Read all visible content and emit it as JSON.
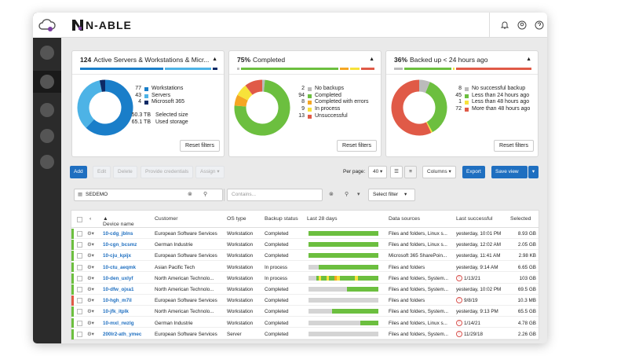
{
  "brand": {
    "name": "N-ABLE"
  },
  "topbar": {
    "icons": [
      "bell-icon",
      "user-icon",
      "help-icon",
      "apps-grid-icon"
    ]
  },
  "cards": [
    {
      "count": "124",
      "title": "Active Servers & Workstations & Micr...",
      "legend": [
        {
          "n": "77",
          "label": "Workstations",
          "color": "#1a7ec9",
          "value": 77
        },
        {
          "n": "43",
          "label": "Servers",
          "color": "#4db3e6",
          "value": 43
        },
        {
          "n": "4",
          "label": "Microsoft 365",
          "color": "#0d2a66",
          "value": 4
        }
      ],
      "stats": [
        {
          "n": "50.3 TB",
          "label": "Selected size"
        },
        {
          "n": "65.1 TB",
          "label": "Used storage"
        }
      ],
      "reset": "Reset filters"
    },
    {
      "count": "75%",
      "title": "Completed",
      "legend": [
        {
          "n": "2",
          "label": "No backups",
          "color": "#bbbbbb",
          "value": 2
        },
        {
          "n": "94",
          "label": "Completed",
          "color": "#6cbf3f",
          "value": 94
        },
        {
          "n": "8",
          "label": "Completed with errors",
          "color": "#f5a623",
          "value": 8
        },
        {
          "n": "9",
          "label": "In process",
          "color": "#f7e23a",
          "value": 9
        },
        {
          "n": "13",
          "label": "Unsuccessful",
          "color": "#e05a47",
          "value": 13
        }
      ],
      "reset": "Reset filters"
    },
    {
      "count": "36%",
      "title": "Backed up < 24 hours ago",
      "legend": [
        {
          "n": "8",
          "label": "No successful backup",
          "color": "#bbbbbb",
          "value": 8
        },
        {
          "n": "45",
          "label": "Less than 24 hours ago",
          "color": "#6cbf3f",
          "value": 45
        },
        {
          "n": "1",
          "label": "Less than 48 hours ago",
          "color": "#f7e23a",
          "value": 1
        },
        {
          "n": "72",
          "label": "More than 48 hours ago",
          "color": "#e05a47",
          "value": 72
        }
      ],
      "reset": "Reset filters"
    }
  ],
  "toolbar": {
    "add": "Add",
    "edit": "Edit",
    "delete": "Delete",
    "provide_credentials": "Provide credentials",
    "assign": "Assign",
    "per_page_label": "Per page:",
    "per_page_value": "40",
    "columns": "Columns",
    "export": "Export",
    "save_view": "Save view"
  },
  "filters": {
    "search_value": "SEDEMO",
    "contains_placeholder": "Contains...",
    "select_filter": "Select filter"
  },
  "grid": {
    "columns": [
      "Device name",
      "Customer",
      "OS type",
      "Backup status",
      "Last 28 days",
      "Data sources",
      "Last successful",
      "Selected"
    ],
    "rows": [
      {
        "device": "10-cdg_jblns",
        "customer": "European Software Services",
        "os": "Workstation",
        "status": "Completed",
        "sources": "Files and folders, Linux s...",
        "last": "yesterday, 10:01 PM",
        "size": "8.93 GB",
        "edge": "#6cbf3f",
        "warn": false,
        "hist": "ggggggggggggggggggggggggggg"
      },
      {
        "device": "10-cgn_bcsmz",
        "customer": "German Industrie",
        "os": "Workstation",
        "status": "Completed",
        "sources": "Files and folders, Linux s...",
        "last": "yesterday, 12:02 AM",
        "size": "2.05 GB",
        "edge": "#6cbf3f",
        "warn": false,
        "hist": "ggggggggggggggggggggggggggg"
      },
      {
        "device": "10-cju_kpijx",
        "customer": "European Software Services",
        "os": "Workstation",
        "status": "Completed",
        "sources": "Microsoft 365 SharePoin...",
        "last": "yesterday, 11:41 AM",
        "size": "2.98 KB",
        "edge": "#6cbf3f",
        "warn": false,
        "hist": "ggggggggggggggggggggggggggg"
      },
      {
        "device": "10-ctu_aeqmk",
        "customer": "Asian Pacific Tech",
        "os": "Workstation",
        "status": "In process",
        "sources": "Files and folders",
        "last": "yesterday, 9:14 AM",
        "size": "6.65 GB",
        "edge": "#6cbf3f",
        "warn": false,
        "hist": "xxxxggggggggggggggggggggggg"
      },
      {
        "device": "10-den_uxlyf",
        "customer": "North American Technolo...",
        "os": "Workstation",
        "status": "In process",
        "sources": "Files and folders, System...",
        "last": "1/13/21",
        "size": "103 GB",
        "edge": "#6cbf3f",
        "warn": true,
        "hist": "xxxgyggyggoyggggggygggggggg"
      },
      {
        "device": "10-dfw_ojxa1",
        "customer": "North American Technolo...",
        "os": "Workstation",
        "status": "Completed",
        "sources": "Files and folders, System...",
        "last": "yesterday, 10:02 PM",
        "size": "69.5 GB",
        "edge": "#6cbf3f",
        "warn": false,
        "hist": "xxxxxxxxxxxxxxxgggggggggggg"
      },
      {
        "device": "10-hgh_m7il",
        "customer": "European Software Services",
        "os": "Workstation",
        "status": "Completed",
        "sources": "Files and folders",
        "last": "9/8/19",
        "size": "10.3 MB",
        "edge": "#e05a47",
        "warn": true,
        "hist": "xxxxxxxxxxxxxxxxxxxxxxxxxxx"
      },
      {
        "device": "10-jfk_itplk",
        "customer": "North American Technolo...",
        "os": "Workstation",
        "status": "Completed",
        "sources": "Files and folders, System...",
        "last": "yesterday, 9:13 PM",
        "size": "65.5 GB",
        "edge": "#6cbf3f",
        "warn": false,
        "hist": "xxxxxxxxxgggggggggggggggggg"
      },
      {
        "device": "10-mxl_rwzlg",
        "customer": "German Industrie",
        "os": "Workstation",
        "status": "Completed",
        "sources": "Files and folders, Linux s...",
        "last": "1/14/21",
        "size": "4.78 GB",
        "edge": "#6cbf3f",
        "warn": true,
        "hist": "xxxxxxxxxxxxxxxxxxxxggggggg"
      },
      {
        "device": "200lr2-ath_ymec",
        "customer": "European Software Services",
        "os": "Server",
        "status": "Completed",
        "sources": "Files and folders, System...",
        "last": "11/29/18",
        "size": "2.26 GB",
        "edge": "#6cbf3f",
        "warn": true,
        "hist": "xxxxxxxxxxxxxxxxxxxxxxxxxxx"
      }
    ]
  },
  "colors": {
    "accent": "#1f6fc0",
    "ok": "#6cbf3f",
    "warn": "#f5a623",
    "error": "#e05a47",
    "progress": "#f7e23a",
    "none": "#bbbbbb"
  }
}
